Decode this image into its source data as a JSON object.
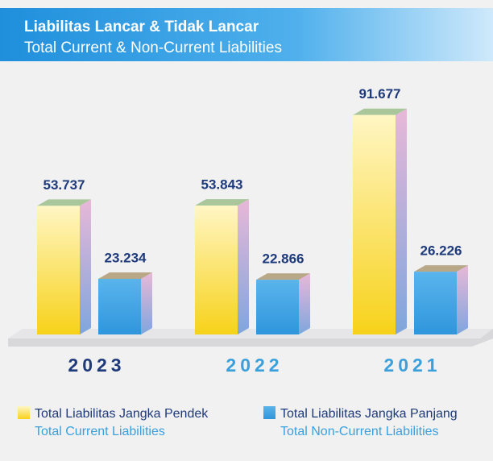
{
  "chart_data": {
    "type": "bar3d",
    "title": "Liabilitas Lancar & Tidak Lancar",
    "subtitle": "Total Current & Non-Current Liabilities",
    "categories": [
      "2023",
      "2022",
      "2021"
    ],
    "category_colors": [
      "#1e3a7a",
      "#3aa0dc",
      "#3aa0dc"
    ],
    "series": [
      {
        "name": "Total Liabilitas Jangka Pendek",
        "name_en": "Total Current Liabilities",
        "color": "#f7d21a",
        "values": [
          53.737,
          53.843,
          91.677
        ]
      },
      {
        "name": "Total Liabilitas Jangka Panjang",
        "name_en": "Total Non-Current Liabilities",
        "color": "#3a9fe0",
        "values": [
          23.234,
          22.866,
          26.226
        ]
      }
    ]
  }
}
